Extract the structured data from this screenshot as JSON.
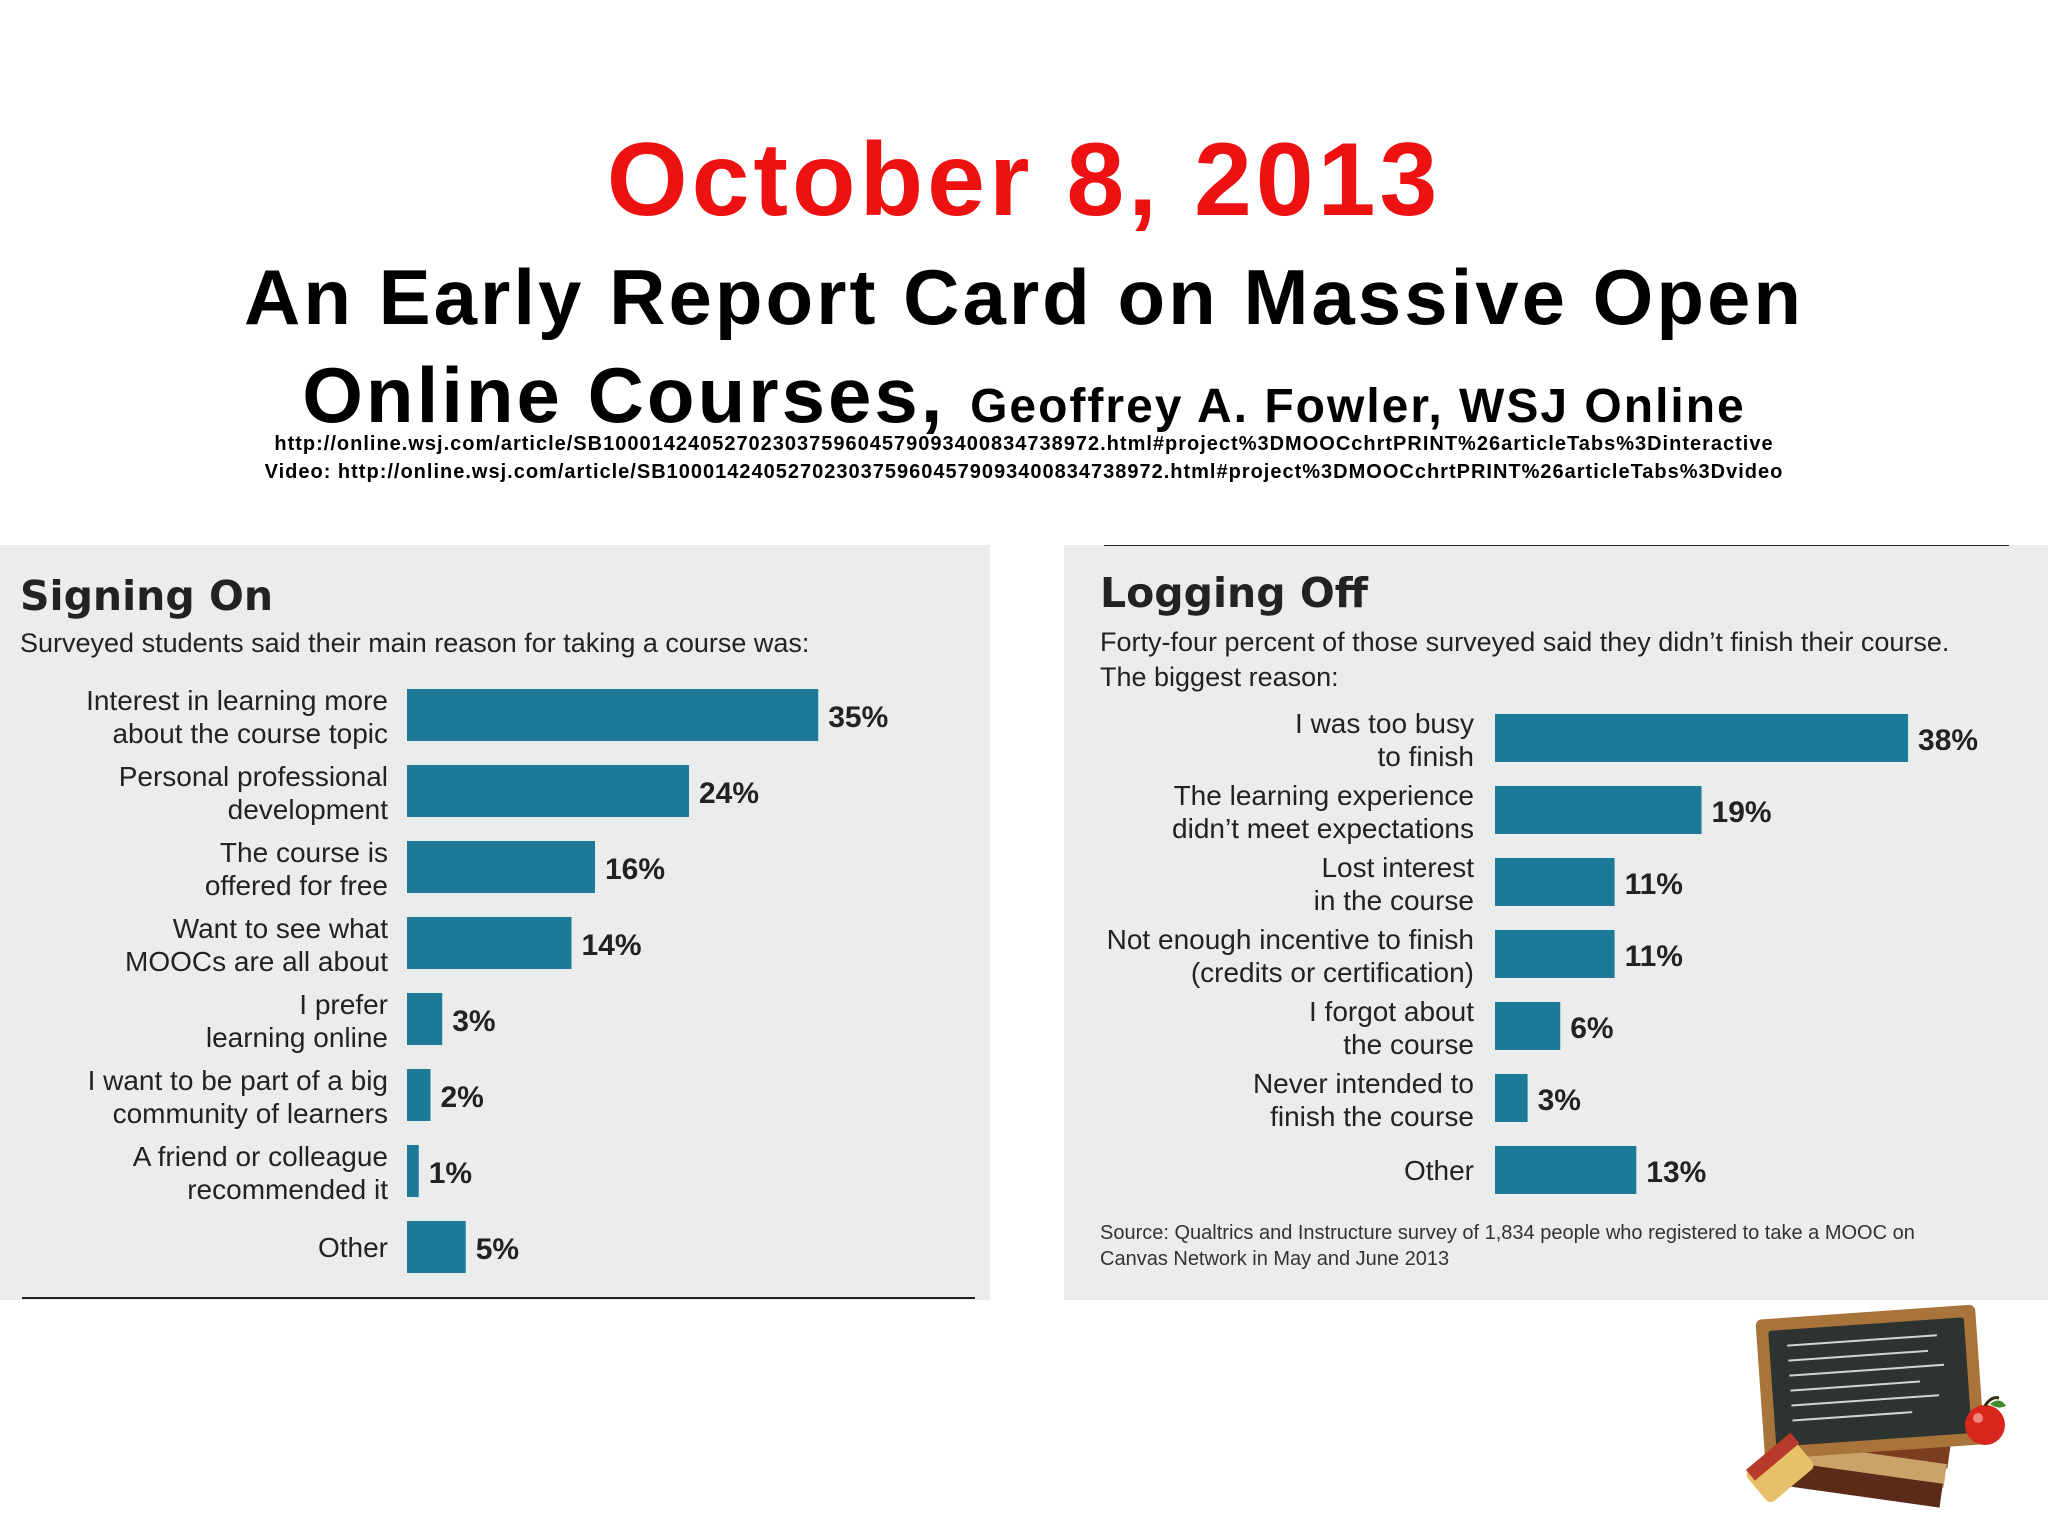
{
  "header": {
    "date": "October 8, 2013",
    "headline_line1": "An Early Report Card on Massive Open",
    "headline_line2": "Online Courses,",
    "byline": "Geoffrey A. Fowler, WSJ Online",
    "url": "http://online.wsj.com/article/SB10001424052702303759604579093400834738972.html#project%3DMOOCchrtPRINT%26articleTabs%3Dinteractive",
    "video_url": "Video: http://online.wsj.com/article/SB10001424052702303759604579093400834738972.html#project%3DMOOCchrtPRINT%26articleTabs%3Dvideo"
  },
  "colors": {
    "date": "#ee1111",
    "bar": "#1a7a98",
    "panel": "#ececec"
  },
  "decoration": {
    "icon": "chalkboard-books-apple-icon"
  },
  "chart_data": [
    {
      "type": "bar",
      "orientation": "horizontal",
      "title": "Signing On",
      "subtitle": "Surveyed students said their main reason for taking a course was:",
      "categories": [
        [
          "Interest in learning more",
          "about the course topic"
        ],
        [
          "Personal professional",
          "development"
        ],
        [
          "The course is",
          "offered for free"
        ],
        [
          "Want to see what",
          "MOOCs are all about"
        ],
        [
          "I prefer",
          "learning online"
        ],
        [
          "I want to be part of a big",
          "community of learners"
        ],
        [
          "A friend or colleague",
          "recommended it"
        ],
        [
          "Other"
        ]
      ],
      "values": [
        35,
        24,
        16,
        14,
        3,
        2,
        1,
        5
      ],
      "value_labels": [
        "35%",
        "24%",
        "16%",
        "14%",
        "3%",
        "2%",
        "1%",
        "5%"
      ],
      "unit": "%",
      "grid": false
    },
    {
      "type": "bar",
      "orientation": "horizontal",
      "title": "Logging Off",
      "subtitle": [
        "Forty-four percent of those surveyed said they didn’t finish their course.",
        "The biggest reason:"
      ],
      "categories": [
        [
          "I was too busy",
          "to finish"
        ],
        [
          "The learning experience",
          "didn’t meet expectations"
        ],
        [
          "Lost interest",
          "in the course"
        ],
        [
          "Not enough incentive to finish",
          "(credits or certification)"
        ],
        [
          "I forgot about",
          "the course"
        ],
        [
          "Never intended to",
          "finish the course"
        ],
        [
          "Other"
        ]
      ],
      "values": [
        38,
        19,
        11,
        11,
        6,
        3,
        13
      ],
      "value_labels": [
        "38%",
        "19%",
        "11%",
        "11%",
        "6%",
        "3%",
        "13%"
      ],
      "unit": "%",
      "grid": false,
      "source": [
        "Source: Qualtrics and Instructure survey of 1,834 people who registered to take a MOOC on",
        "Canvas Network in May and June 2013"
      ]
    }
  ]
}
